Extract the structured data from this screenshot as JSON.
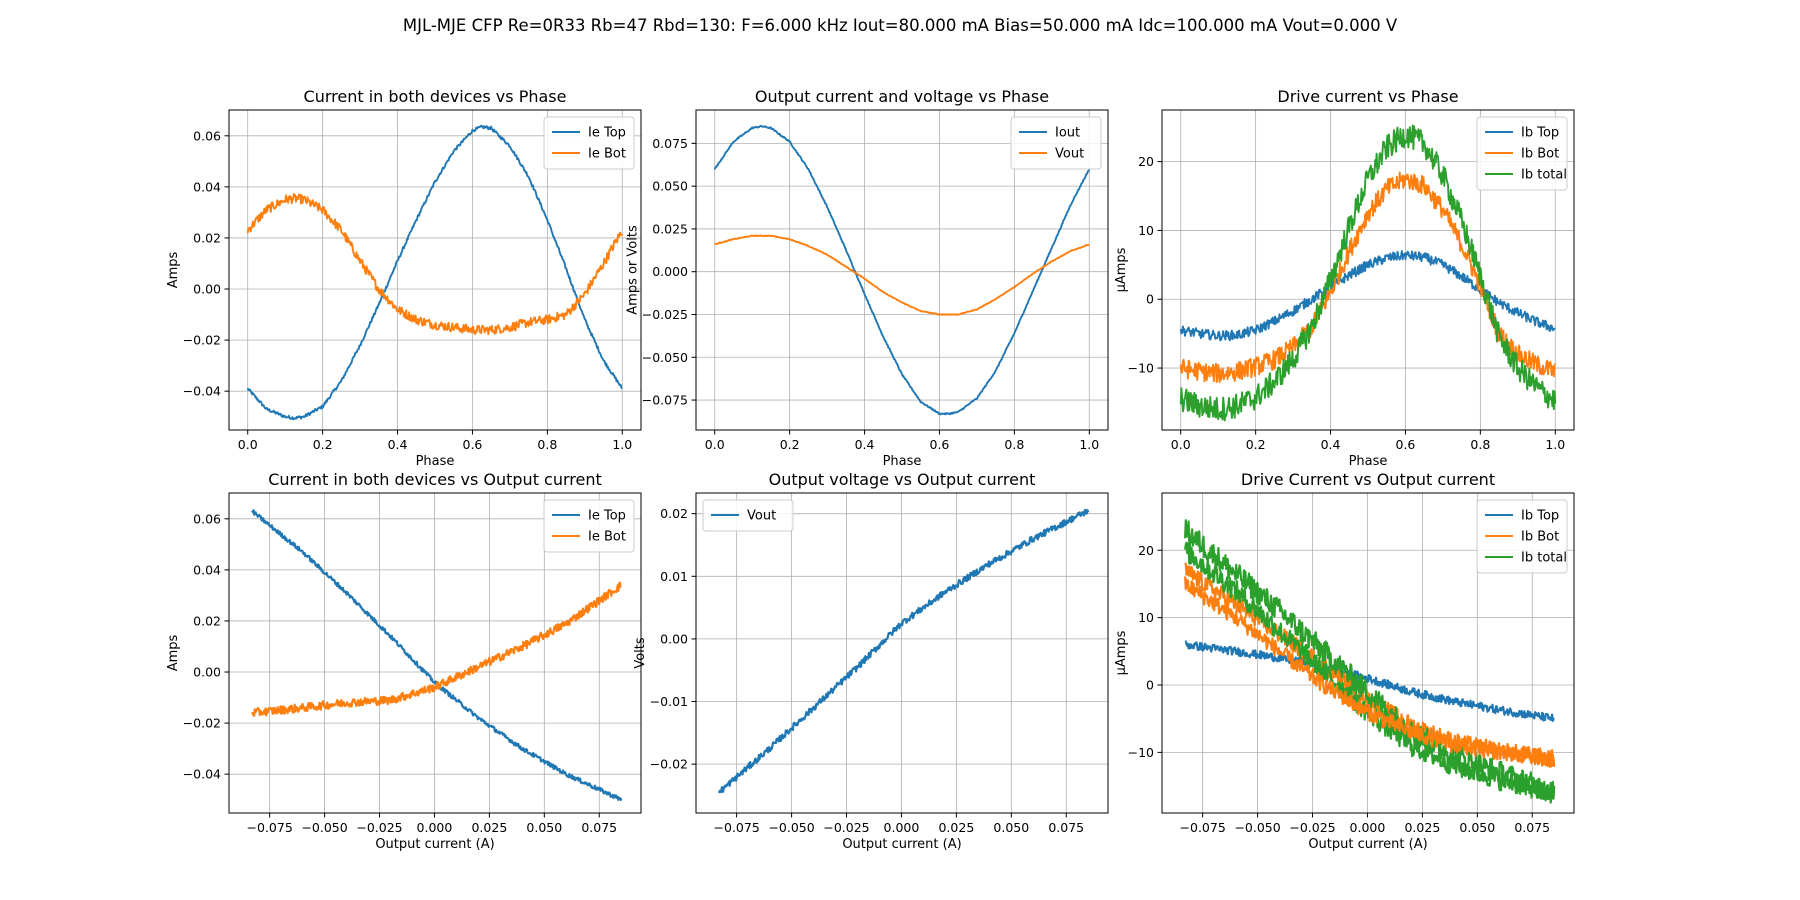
{
  "figure_title": "MJL-MJE CFP Re=0R33 Rb=47 Rbd=130: F=6.000 kHz Iout=80.000 mA Bias=50.000 mA Idc=100.000 mA Vout=0.000 V",
  "colors": {
    "blue": "#1f77b4",
    "orange": "#ff7f0e",
    "green": "#2ca02c",
    "grid": "#b0b0b0"
  },
  "chart_data": [
    {
      "type": "line",
      "title": "Current in both devices vs Phase",
      "xlabel": "Phase",
      "ylabel": "Amps",
      "xlim": [
        -0.05,
        1.05
      ],
      "ylim": [
        -0.0552,
        0.0701
      ],
      "xticks": [
        0.0,
        0.2,
        0.4,
        0.6,
        0.8,
        1.0
      ],
      "xtick_labels": [
        "0.0",
        "0.2",
        "0.4",
        "0.6",
        "0.8",
        "1.0"
      ],
      "yticks": [
        -0.04,
        -0.02,
        0.0,
        0.02,
        0.04,
        0.06
      ],
      "ytick_labels": [
        "−0.04",
        "−0.02",
        "0.00",
        "0.02",
        "0.04",
        "0.06"
      ],
      "grid": true,
      "legend": "upper right",
      "series": [
        {
          "name": "Ie Top",
          "color": "#1f77b4",
          "noise": 0.0006,
          "x": [
            0.0,
            0.05,
            0.1,
            0.125,
            0.15,
            0.2,
            0.25,
            0.3,
            0.35,
            0.4,
            0.45,
            0.5,
            0.55,
            0.6,
            0.625,
            0.65,
            0.7,
            0.75,
            0.8,
            0.85,
            0.9,
            0.95,
            1.0
          ],
          "y": [
            -0.039,
            -0.047,
            -0.05,
            -0.0505,
            -0.05,
            -0.046,
            -0.036,
            -0.022,
            -0.006,
            0.011,
            0.027,
            0.042,
            0.054,
            0.062,
            0.0635,
            0.063,
            0.056,
            0.044,
            0.027,
            0.008,
            -0.012,
            -0.028,
            -0.039
          ]
        },
        {
          "name": "Ie Bot",
          "color": "#ff7f0e",
          "noise": 0.0018,
          "x": [
            0.0,
            0.05,
            0.1,
            0.125,
            0.15,
            0.2,
            0.25,
            0.3,
            0.35,
            0.4,
            0.45,
            0.5,
            0.55,
            0.6,
            0.65,
            0.7,
            0.75,
            0.8,
            0.85,
            0.9,
            0.95,
            1.0
          ],
          "y": [
            0.023,
            0.031,
            0.035,
            0.0355,
            0.035,
            0.031,
            0.023,
            0.011,
            0.0,
            -0.008,
            -0.012,
            -0.014,
            -0.015,
            -0.016,
            -0.016,
            -0.015,
            -0.013,
            -0.012,
            -0.01,
            -0.002,
            0.01,
            0.023
          ]
        }
      ]
    },
    {
      "type": "line",
      "title": "Output current and voltage vs Phase",
      "xlabel": "Phase",
      "ylabel": "Amps or Volts",
      "xlim": [
        -0.05,
        1.05
      ],
      "ylim": [
        -0.0925,
        0.0945
      ],
      "xticks": [
        0.0,
        0.2,
        0.4,
        0.6,
        0.8,
        1.0
      ],
      "xtick_labels": [
        "0.0",
        "0.2",
        "0.4",
        "0.6",
        "0.8",
        "1.0"
      ],
      "yticks": [
        -0.075,
        -0.05,
        -0.025,
        0.0,
        0.025,
        0.05,
        0.075
      ],
      "ytick_labels": [
        "−0.075",
        "−0.050",
        "−0.025",
        "0.000",
        "0.025",
        "0.050",
        "0.075"
      ],
      "grid": true,
      "legend": "upper right",
      "series": [
        {
          "name": "Iout",
          "color": "#1f77b4",
          "noise": 0.0004,
          "x": [
            0.0,
            0.05,
            0.1,
            0.125,
            0.15,
            0.2,
            0.25,
            0.3,
            0.35,
            0.4,
            0.45,
            0.5,
            0.55,
            0.6,
            0.625,
            0.65,
            0.7,
            0.75,
            0.8,
            0.85,
            0.9,
            0.95,
            1.0
          ],
          "y": [
            0.06,
            0.076,
            0.084,
            0.085,
            0.084,
            0.076,
            0.06,
            0.038,
            0.013,
            -0.013,
            -0.038,
            -0.06,
            -0.076,
            -0.083,
            -0.083,
            -0.082,
            -0.074,
            -0.058,
            -0.036,
            -0.011,
            0.014,
            0.039,
            0.06
          ]
        },
        {
          "name": "Vout",
          "color": "#ff7f0e",
          "noise": 0.0002,
          "x": [
            0.0,
            0.05,
            0.1,
            0.125,
            0.15,
            0.2,
            0.25,
            0.3,
            0.35,
            0.4,
            0.45,
            0.5,
            0.55,
            0.6,
            0.625,
            0.65,
            0.7,
            0.75,
            0.8,
            0.85,
            0.9,
            0.95,
            1.0
          ],
          "y": [
            0.016,
            0.019,
            0.021,
            0.021,
            0.021,
            0.019,
            0.015,
            0.01,
            0.003,
            -0.004,
            -0.012,
            -0.018,
            -0.023,
            -0.025,
            -0.025,
            -0.025,
            -0.022,
            -0.016,
            -0.009,
            -0.001,
            0.006,
            0.012,
            0.016
          ]
        }
      ]
    },
    {
      "type": "line",
      "title": "Drive current vs Phase",
      "xlabel": "Phase",
      "ylabel": "µAmps",
      "xlim": [
        -0.05,
        1.05
      ],
      "ylim": [
        -19.0,
        27.5
      ],
      "xticks": [
        0.0,
        0.2,
        0.4,
        0.6,
        0.8,
        1.0
      ],
      "xtick_labels": [
        "0.0",
        "0.2",
        "0.4",
        "0.6",
        "0.8",
        "1.0"
      ],
      "yticks": [
        -10,
        0,
        10,
        20
      ],
      "ytick_labels": [
        "−10",
        "0",
        "10",
        "20"
      ],
      "grid": true,
      "legend": "upper right",
      "series": [
        {
          "name": "Ib Top",
          "color": "#1f77b4",
          "noise": 0.7,
          "x": [
            0.0,
            0.05,
            0.1,
            0.15,
            0.2,
            0.25,
            0.3,
            0.35,
            0.4,
            0.45,
            0.5,
            0.55,
            0.6,
            0.65,
            0.7,
            0.75,
            0.8,
            0.85,
            0.9,
            0.95,
            1.0
          ],
          "y": [
            -4.5,
            -5.0,
            -5.3,
            -5.2,
            -4.5,
            -3.2,
            -1.7,
            0.0,
            1.8,
            3.5,
            5.0,
            6.0,
            6.4,
            6.1,
            5.0,
            3.3,
            1.4,
            -0.5,
            -2.0,
            -3.3,
            -4.3
          ]
        },
        {
          "name": "Ib Bot",
          "color": "#ff7f0e",
          "noise": 1.4,
          "x": [
            0.0,
            0.05,
            0.1,
            0.15,
            0.2,
            0.25,
            0.3,
            0.35,
            0.4,
            0.45,
            0.5,
            0.55,
            0.6,
            0.65,
            0.7,
            0.75,
            0.8,
            0.85,
            0.9,
            0.95,
            1.0
          ],
          "y": [
            -10.0,
            -10.5,
            -10.8,
            -10.5,
            -9.8,
            -8.8,
            -7.0,
            -4.0,
            1.0,
            7.0,
            12.5,
            16.0,
            17.5,
            16.5,
            13.0,
            8.0,
            2.0,
            -5.0,
            -8.0,
            -9.5,
            -10.5
          ]
        },
        {
          "name": "Ib total",
          "color": "#2ca02c",
          "noise": 1.8,
          "x": [
            0.0,
            0.05,
            0.1,
            0.15,
            0.2,
            0.25,
            0.3,
            0.35,
            0.4,
            0.45,
            0.5,
            0.55,
            0.6,
            0.65,
            0.7,
            0.75,
            0.8,
            0.85,
            0.9,
            0.95,
            1.0
          ],
          "y": [
            -14.5,
            -15.5,
            -16.0,
            -15.5,
            -14.3,
            -12.0,
            -8.7,
            -4.0,
            2.8,
            10.5,
            17.5,
            22.0,
            24.0,
            22.6,
            18.0,
            11.3,
            3.4,
            -5.5,
            -10.0,
            -12.8,
            -14.8
          ]
        }
      ]
    },
    {
      "type": "scatter",
      "title": "Current in both devices vs Output current",
      "xlabel": "Output current (A)",
      "ylabel": "Amps",
      "xlim": [
        -0.0935,
        0.094
      ],
      "ylim": [
        -0.0552,
        0.0701
      ],
      "xticks": [
        -0.075,
        -0.05,
        -0.025,
        0.0,
        0.025,
        0.05,
        0.075
      ],
      "xtick_labels": [
        "−0.075",
        "−0.050",
        "−0.025",
        "0.000",
        "0.025",
        "0.050",
        "0.075"
      ],
      "yticks": [
        -0.04,
        -0.02,
        0.0,
        0.02,
        0.04,
        0.06
      ],
      "ytick_labels": [
        "−0.04",
        "−0.02",
        "0.00",
        "0.02",
        "0.04",
        "0.06"
      ],
      "grid": true,
      "legend": "upper right",
      "series": [
        {
          "name": "Ie Top",
          "color": "#1f77b4",
          "noise": 0.0008,
          "x": [
            -0.083,
            -0.06,
            -0.04,
            -0.02,
            0.0,
            0.02,
            0.04,
            0.06,
            0.085
          ],
          "y": [
            0.063,
            0.047,
            0.031,
            0.014,
            -0.004,
            -0.018,
            -0.03,
            -0.04,
            -0.05
          ]
        },
        {
          "name": "Ie Bot",
          "color": "#ff7f0e",
          "noise": 0.0016,
          "x": [
            -0.083,
            -0.06,
            -0.04,
            -0.02,
            0.0,
            0.02,
            0.04,
            0.06,
            0.085
          ],
          "y": [
            -0.016,
            -0.014,
            -0.012,
            -0.011,
            -0.006,
            0.002,
            0.01,
            0.019,
            0.034
          ]
        }
      ]
    },
    {
      "type": "scatter",
      "title": "Output voltage vs Output current",
      "xlabel": "Output current (A)",
      "ylabel": "Volts",
      "xlim": [
        -0.0935,
        0.094
      ],
      "ylim": [
        -0.0278,
        0.0233
      ],
      "xticks": [
        -0.075,
        -0.05,
        -0.025,
        0.0,
        0.025,
        0.05,
        0.075
      ],
      "xtick_labels": [
        "−0.075",
        "−0.050",
        "−0.025",
        "0.000",
        "0.025",
        "0.050",
        "0.075"
      ],
      "yticks": [
        -0.02,
        -0.01,
        0.0,
        0.01,
        0.02
      ],
      "ytick_labels": [
        "−0.02",
        "−0.01",
        "0.00",
        "0.01",
        "0.02"
      ],
      "grid": true,
      "legend": "upper left",
      "series": [
        {
          "name": "Vout",
          "color": "#1f77b4",
          "noise": 0.0005,
          "x": [
            -0.083,
            -0.06,
            -0.04,
            -0.02,
            0.0,
            0.02,
            0.04,
            0.06,
            0.085
          ],
          "y": [
            -0.0245,
            -0.0175,
            -0.011,
            -0.0045,
            0.0025,
            0.0075,
            0.012,
            0.016,
            0.0205
          ]
        }
      ]
    },
    {
      "type": "scatter",
      "title": "Drive Current vs Output current",
      "xlabel": "Output current (A)",
      "ylabel": "µAmps",
      "xlim": [
        -0.0935,
        0.094
      ],
      "ylim": [
        -19.0,
        28.5
      ],
      "xticks": [
        -0.075,
        -0.05,
        -0.025,
        0.0,
        0.025,
        0.05,
        0.075
      ],
      "xtick_labels": [
        "−0.075",
        "−0.050",
        "−0.025",
        "0.000",
        "0.025",
        "0.050",
        "0.075"
      ],
      "yticks": [
        -10,
        0,
        10,
        20
      ],
      "ytick_labels": [
        "−10",
        "0",
        "10",
        "20"
      ],
      "grid": true,
      "legend": "upper right",
      "series": [
        {
          "name": "Ib Top",
          "color": "#1f77b4",
          "noise": 0.6,
          "x": [
            -0.083,
            -0.06,
            -0.04,
            -0.02,
            0.0,
            0.02,
            0.04,
            0.06,
            0.085
          ],
          "y": [
            6.0,
            5.0,
            4.0,
            2.8,
            1.0,
            -1.0,
            -2.5,
            -3.7,
            -5.0
          ]
        },
        {
          "name": "Ib Bot",
          "color": "#ff7f0e",
          "noise": 1.3,
          "x": [
            -0.083,
            -0.06,
            -0.04,
            -0.02,
            0.0,
            0.02,
            0.04,
            0.06,
            0.085
          ],
          "y": [
            17.0,
            12.0,
            7.5,
            3.0,
            -2.0,
            -6.0,
            -8.5,
            -9.8,
            -11.0
          ]
        },
        {
          "name": "Ib total",
          "color": "#2ca02c",
          "noise": 1.8,
          "x": [
            -0.083,
            -0.06,
            -0.04,
            -0.02,
            0.0,
            0.02,
            0.04,
            0.06,
            0.085
          ],
          "y": [
            23.0,
            16.5,
            11.0,
            5.0,
            -1.0,
            -7.0,
            -10.5,
            -13.0,
            -16.0
          ]
        },
        {
          "name": "Ib total",
          "color": "#2ca02c",
          "noise": 1.6,
          "legend": false,
          "x": [
            -0.083,
            -0.06,
            -0.04,
            -0.02,
            0.0,
            0.02,
            0.04,
            0.06,
            0.085
          ],
          "y": [
            20.0,
            14.0,
            8.0,
            2.0,
            -4.0,
            -9.0,
            -12.0,
            -14.0,
            -16.0
          ]
        },
        {
          "name": "Ib Bot",
          "color": "#ff7f0e",
          "noise": 1.2,
          "legend": false,
          "x": [
            -0.083,
            -0.06,
            -0.04,
            -0.02,
            0.0,
            0.02,
            0.04,
            0.06,
            0.085
          ],
          "y": [
            15.0,
            10.0,
            5.0,
            0.0,
            -4.0,
            -7.0,
            -9.0,
            -10.0,
            -11.0
          ]
        }
      ]
    }
  ]
}
